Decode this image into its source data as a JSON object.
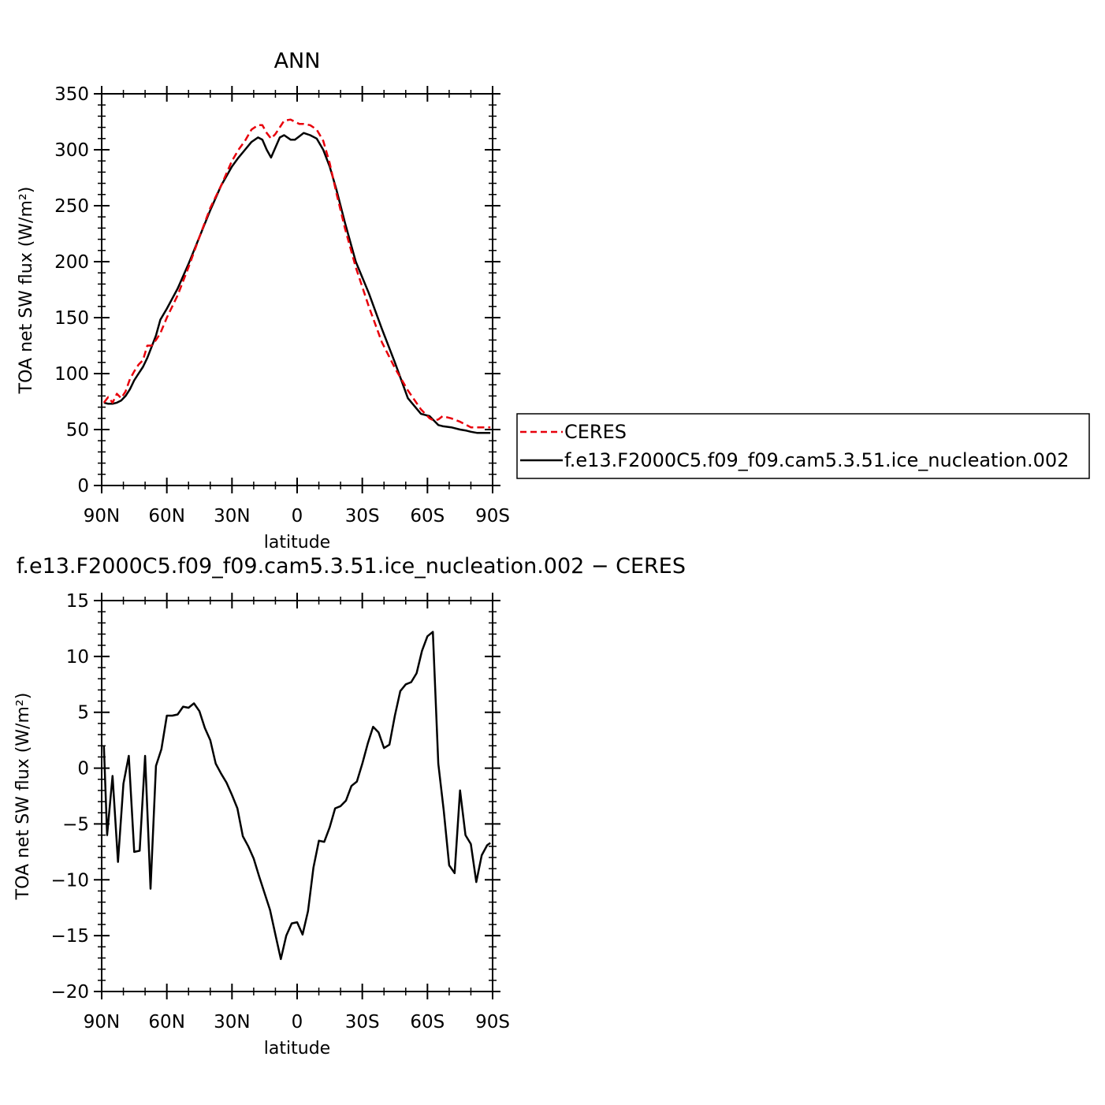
{
  "chart_data": [
    {
      "type": "line",
      "title": "ANN",
      "xlabel": "latitude",
      "ylabel": "TOA net SW flux (W/m²)",
      "ylim": [
        0,
        350
      ],
      "yticks": [
        0,
        50,
        100,
        150,
        200,
        250,
        300,
        350
      ],
      "ytick_labels": [
        "0",
        "50",
        "100",
        "150",
        "200",
        "250",
        "300",
        "350"
      ],
      "xlim": [
        90,
        -90
      ],
      "xticks": [
        90,
        60,
        30,
        0,
        -30,
        -60,
        -90
      ],
      "xtick_labels": [
        "90N",
        "60N",
        "30N",
        "0",
        "30S",
        "60S",
        "90S"
      ],
      "legend_position": "right",
      "series": [
        {
          "name": "CERES",
          "color": "#e8000b",
          "dash": true,
          "x": [
            89,
            87,
            85,
            83,
            81,
            79,
            77,
            75,
            73,
            71,
            69,
            67,
            65,
            63,
            60,
            55,
            50,
            45,
            40,
            35,
            30,
            27,
            24,
            21,
            18,
            16,
            14,
            12,
            10,
            8,
            6,
            3,
            1,
            -1,
            -3,
            -6,
            -9,
            -12,
            -15,
            -18,
            -22,
            -27,
            -33,
            -39,
            -45,
            -51,
            -57,
            -61,
            -63,
            -65,
            -67,
            -71,
            -75,
            -78,
            -80,
            -83,
            -85,
            -87,
            -89
          ],
          "y": [
            74,
            79,
            74,
            82,
            78,
            84,
            95,
            102,
            108,
            112,
            125,
            125,
            130,
            136,
            150,
            170,
            195,
            222,
            248,
            268,
            290,
            300,
            308,
            318,
            322,
            322,
            315,
            310,
            314,
            320,
            326,
            327,
            325,
            323,
            323,
            322,
            318,
            308,
            288,
            262,
            230,
            195,
            160,
            128,
            105,
            85,
            68,
            60,
            58,
            59,
            62,
            60,
            57,
            54,
            52,
            52,
            52,
            52,
            52
          ]
        },
        {
          "name": "f.e13.F2000C5.f09_f09.cam5.3.51.ice_nucleation.002",
          "color": "#000000",
          "dash": false,
          "x": [
            89,
            87,
            85,
            83,
            81,
            79,
            77,
            75,
            73,
            71,
            69,
            67,
            65,
            63,
            60,
            55,
            50,
            45,
            40,
            35,
            30,
            27,
            24,
            21,
            18,
            16,
            14,
            12,
            10,
            8,
            6,
            3,
            1,
            -1,
            -3,
            -6,
            -9,
            -12,
            -15,
            -18,
            -22,
            -27,
            -33,
            -39,
            -45,
            -51,
            -57,
            -61,
            -63,
            -65,
            -67,
            -71,
            -75,
            -78,
            -80,
            -83,
            -85,
            -87,
            -89
          ],
          "y": [
            74,
            73,
            73,
            74,
            76,
            80,
            86,
            94,
            100,
            106,
            114,
            124,
            134,
            148,
            158,
            176,
            198,
            222,
            246,
            268,
            285,
            293,
            300,
            307,
            311,
            309,
            300,
            293,
            302,
            311,
            313,
            309,
            309,
            312,
            315,
            313,
            310,
            300,
            285,
            265,
            235,
            200,
            172,
            140,
            110,
            78,
            64,
            62,
            58,
            54,
            53,
            52,
            50,
            49,
            48,
            47,
            47,
            47,
            47
          ]
        }
      ]
    },
    {
      "type": "line",
      "title": "f.e13.F2000C5.f09_f09.cam5.3.51.ice_nucleation.002 − CERES",
      "xlabel": "latitude",
      "ylabel": "TOA net SW flux (W/m²)",
      "ylim": [
        -20,
        15
      ],
      "yticks": [
        -20,
        -15,
        -10,
        -5,
        0,
        5,
        10,
        15
      ],
      "ytick_labels": [
        "−20",
        "−15",
        "−10",
        "−5",
        "0",
        "5",
        "10",
        "15"
      ],
      "xlim": [
        90,
        -90
      ],
      "xticks": [
        90,
        60,
        30,
        0,
        -30,
        -60,
        -90
      ],
      "xtick_labels": [
        "90N",
        "60N",
        "30N",
        "0",
        "30S",
        "60S",
        "90S"
      ],
      "series": [
        {
          "color": "#000000",
          "x": [
            89,
            87.5,
            85,
            82.5,
            80,
            77.5,
            75,
            72.5,
            70,
            67.5,
            65,
            62.5,
            60,
            57.5,
            55,
            52.5,
            50,
            47.5,
            45,
            42.5,
            40,
            37.5,
            35,
            32.5,
            30,
            27.5,
            25,
            22.5,
            20,
            17.5,
            15,
            12.5,
            10,
            7.5,
            5,
            2.5,
            0,
            -2.5,
            -5,
            -7.5,
            -10,
            -12.5,
            -15,
            -17.5,
            -20,
            -22.5,
            -25,
            -27.5,
            -30,
            -32.5,
            -35,
            -37.5,
            -40,
            -42.5,
            -45,
            -47.5,
            -50,
            -52.5,
            -55,
            -57.5,
            -60,
            -62.5,
            -65,
            -67.5,
            -70,
            -72.5,
            -75,
            -77.5,
            -80,
            -82.5,
            -85,
            -87.5,
            -89
          ],
          "y": [
            2,
            -6,
            -0.7,
            -8.4,
            -1.4,
            1.1,
            -7.5,
            -7.4,
            1.1,
            -10.8,
            0.2,
            1.7,
            4.7,
            4.7,
            4.8,
            5.5,
            5.4,
            5.8,
            5.1,
            3.6,
            2.5,
            0.4,
            -0.5,
            -1.3,
            -2.4,
            -3.6,
            -6.1,
            -7,
            -8.1,
            -9.7,
            -11.2,
            -12.7,
            -14.9,
            -17.1,
            -15,
            -13.9,
            -13.8,
            -14.9,
            -12.8,
            -8.9,
            -6.5,
            -6.6,
            -5.3,
            -3.6,
            -3.4,
            -2.9,
            -1.6,
            -1.2,
            0.4,
            2.2,
            3.7,
            3.2,
            1.8,
            2.1,
            4.7,
            6.9,
            7.5,
            7.7,
            8.5,
            10.5,
            11.8,
            12.2,
            0.4,
            -3.8,
            -8.7,
            -9.4,
            -2,
            -6,
            -6.8,
            -10.2,
            -7.8,
            -6.9,
            -6.7
          ]
        }
      ]
    }
  ]
}
